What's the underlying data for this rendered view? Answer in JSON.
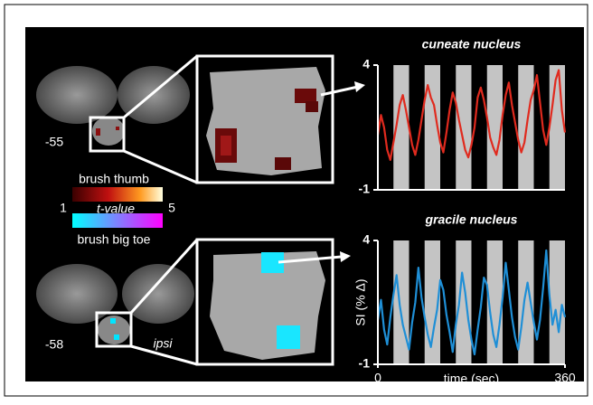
{
  "chart_data": [
    {
      "type": "line",
      "title": "cuneate nucleus",
      "x": [
        0,
        6,
        12,
        18,
        24,
        30,
        36,
        42,
        48,
        54,
        60,
        66,
        72,
        78,
        84,
        90,
        96,
        102,
        108,
        114,
        120,
        126,
        132,
        138,
        144,
        150,
        156,
        162,
        168,
        174,
        180,
        186,
        192,
        198,
        204,
        210,
        216,
        222,
        228,
        234,
        240,
        246,
        252,
        258,
        264,
        270,
        276,
        282,
        288,
        294,
        300,
        306,
        312,
        318,
        324,
        330,
        336,
        342,
        348,
        354,
        360
      ],
      "series": [
        {
          "color": "#e02a1e",
          "values": [
            1.2,
            2.0,
            1.5,
            0.6,
            0.2,
            0.9,
            1.6,
            2.4,
            2.8,
            2.2,
            1.5,
            0.8,
            0.4,
            1.0,
            1.8,
            2.6,
            3.2,
            2.7,
            2.4,
            1.6,
            0.9,
            0.5,
            1.3,
            2.2,
            2.9,
            2.5,
            1.8,
            1.2,
            0.6,
            0.3,
            0.8,
            1.5,
            2.7,
            3.1,
            2.6,
            1.9,
            1.1,
            0.7,
            0.4,
            1.0,
            2.0,
            2.8,
            3.3,
            2.4,
            1.7,
            1.0,
            0.5,
            0.9,
            1.8,
            2.6,
            3.0,
            3.6,
            2.5,
            1.4,
            0.8,
            1.5,
            2.4,
            3.4,
            3.8,
            2.2,
            1.3
          ]
        }
      ],
      "blocks": [
        [
          30,
          60
        ],
        [
          90,
          120
        ],
        [
          150,
          180
        ],
        [
          210,
          240
        ],
        [
          270,
          300
        ],
        [
          330,
          360
        ]
      ],
      "xlim": [
        0,
        360
      ],
      "ylim": [
        -1,
        4
      ],
      "yticks": [
        -1,
        4
      ]
    },
    {
      "type": "line",
      "title": "gracile nucleus",
      "xlabel": "time (sec)",
      "ylabel": "SI (% Δ)",
      "x": [
        0,
        6,
        12,
        18,
        24,
        30,
        36,
        42,
        48,
        54,
        60,
        66,
        72,
        78,
        84,
        90,
        96,
        102,
        108,
        114,
        120,
        126,
        132,
        138,
        144,
        150,
        156,
        162,
        168,
        174,
        180,
        186,
        192,
        198,
        204,
        210,
        216,
        222,
        228,
        234,
        240,
        246,
        252,
        258,
        264,
        270,
        276,
        282,
        288,
        294,
        300,
        306,
        312,
        318,
        324,
        330,
        336,
        342,
        348,
        354,
        360
      ],
      "series": [
        {
          "color": "#1f8fd6",
          "values": [
            0.8,
            1.6,
            0.4,
            -0.2,
            0.9,
            1.8,
            2.6,
            1.4,
            0.6,
            0.1,
            -0.4,
            0.7,
            1.5,
            2.9,
            1.7,
            0.9,
            0.2,
            -0.3,
            0.5,
            1.2,
            2.4,
            2.0,
            1.0,
            0.3,
            -0.5,
            0.6,
            1.4,
            2.7,
            1.9,
            0.8,
            0.0,
            -0.6,
            0.4,
            1.3,
            2.5,
            2.2,
            1.1,
            0.2,
            -0.3,
            0.6,
            1.7,
            3.1,
            2.0,
            0.9,
            0.1,
            -0.4,
            0.5,
            1.6,
            2.3,
            1.5,
            0.7,
            0.0,
            0.8,
            2.1,
            3.6,
            1.8,
            0.6,
            1.2,
            0.3,
            1.4,
            0.9
          ]
        }
      ],
      "blocks": [
        [
          30,
          60
        ],
        [
          90,
          120
        ],
        [
          150,
          180
        ],
        [
          210,
          240
        ],
        [
          270,
          300
        ],
        [
          330,
          360
        ]
      ],
      "xlim": [
        0,
        360
      ],
      "xticks": [
        0,
        360
      ],
      "ylim": [
        -1,
        4
      ],
      "yticks": [
        -1,
        4
      ]
    }
  ],
  "slices": [
    {
      "label": "-55"
    },
    {
      "label": "-58",
      "side": "ipsi"
    }
  ],
  "legend": {
    "thumb": "brush thumb",
    "toe": "brush big toe",
    "colorbar": {
      "title": "t-value",
      "min": 1,
      "max": 5
    }
  }
}
